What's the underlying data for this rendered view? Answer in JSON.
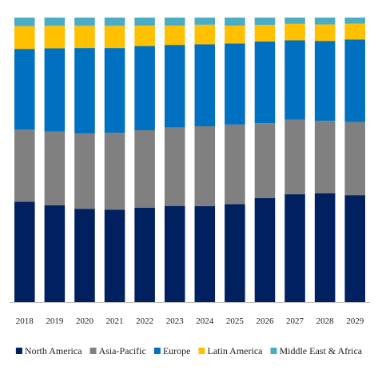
{
  "chart_data": {
    "type": "bar",
    "stacked": true,
    "normalized": true,
    "title": "",
    "xlabel": "",
    "ylabel": "",
    "ylim": [
      0,
      100
    ],
    "grid": false,
    "legend_position": "bottom",
    "categories": [
      "2018",
      "2019",
      "2020",
      "2021",
      "2022",
      "2023",
      "2024",
      "2025",
      "2026",
      "2027",
      "2028",
      "2029"
    ],
    "series": [
      {
        "name": "North America",
        "color": "#002060",
        "values": [
          35.3,
          34.0,
          32.8,
          32.5,
          33.2,
          33.8,
          33.7,
          34.4,
          36.6,
          37.9,
          38.2,
          37.6
        ]
      },
      {
        "name": "Asia-Pacific",
        "color": "#808080",
        "values": [
          25.3,
          25.9,
          26.5,
          27.0,
          27.2,
          27.6,
          28.1,
          28.0,
          26.3,
          26.2,
          25.5,
          25.7
        ]
      },
      {
        "name": "Europe",
        "color": "#0070C0",
        "values": [
          28.4,
          29.3,
          30.0,
          29.8,
          29.6,
          29.0,
          28.8,
          28.5,
          28.7,
          27.9,
          28.1,
          29.0
        ]
      },
      {
        "name": "Latin America",
        "color": "#FFC000",
        "values": [
          8.0,
          7.9,
          7.8,
          7.8,
          7.2,
          6.8,
          6.9,
          6.3,
          5.8,
          5.8,
          5.8,
          5.6
        ]
      },
      {
        "name": "Middle East & Africa",
        "color": "#4BACC6",
        "values": [
          3.0,
          2.9,
          2.9,
          2.9,
          2.8,
          2.8,
          2.5,
          2.8,
          2.6,
          2.2,
          2.4,
          2.1
        ]
      }
    ]
  }
}
